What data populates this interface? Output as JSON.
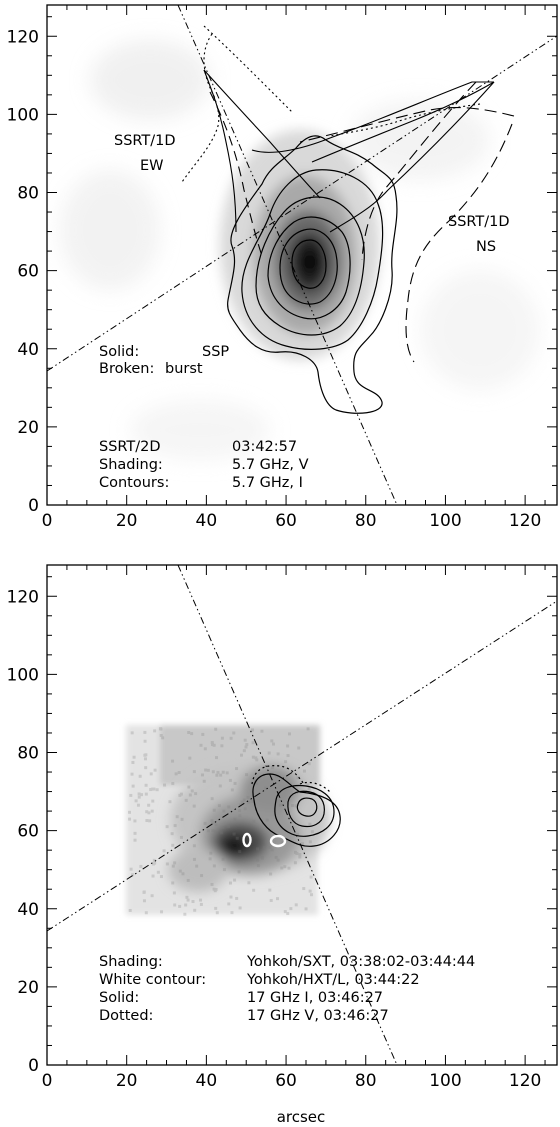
{
  "chart_data": [
    {
      "type": "contour",
      "panel": "top",
      "xlim": [
        0,
        128
      ],
      "ylim": [
        0,
        128
      ],
      "x_ticks": [
        0,
        20,
        40,
        60,
        80,
        100,
        120
      ],
      "y_ticks": [
        0,
        20,
        40,
        60,
        80,
        100,
        120
      ],
      "labels": [
        {
          "text": "SSRT/1D",
          "x": 24,
          "y": 96
        },
        {
          "text": "EW",
          "x": 27,
          "y": 88.5
        },
        {
          "text": "SSRT/1D",
          "x": 112,
          "y": 71.5
        },
        {
          "text": "NS",
          "x": 113,
          "y": 64.5
        }
      ],
      "legend_lines": [
        {
          "key": "Solid:",
          "value": "SSP"
        },
        {
          "key": "Broken:",
          "value": "burst"
        }
      ],
      "info_lines": [
        {
          "key": "SSRT/2D",
          "value": "03:42:57"
        },
        {
          "key": "Shading:",
          "value": "5.7 GHz, V"
        },
        {
          "key": "Contours:",
          "value": "5.7 GHz, I"
        }
      ],
      "scan_lines": [
        {
          "x1": 0,
          "y1": 34,
          "x2": 128,
          "y2": 118
        },
        {
          "x1": 38,
          "y1": 128,
          "x2": 88,
          "y2": 0
        }
      ],
      "shading_peak": {
        "x": 65,
        "y": 62
      },
      "contour_levels": 6
    },
    {
      "type": "contour",
      "panel": "bottom",
      "xlim": [
        0,
        128
      ],
      "ylim": [
        0,
        128
      ],
      "x_ticks": [
        0,
        20,
        40,
        60,
        80,
        100,
        120
      ],
      "y_ticks": [
        0,
        20,
        40,
        60,
        80,
        100,
        120
      ],
      "xlabel": "arcsec",
      "info_lines": [
        {
          "key": "Shading:",
          "value": "Yohkoh/SXT, 03:38:02-03:44:44"
        },
        {
          "key": "White contour:",
          "value": "Yohkoh/HXT/L, 03:44:22"
        },
        {
          "key": "Solid:",
          "value": "17 GHz I, 03:46:27"
        },
        {
          "key": "Dotted:",
          "value": "17 GHz V, 03:46:27"
        }
      ],
      "scan_lines": [
        {
          "x1": 0,
          "y1": 34,
          "x2": 128,
          "y2": 118
        },
        {
          "x1": 38,
          "y1": 128,
          "x2": 88,
          "y2": 0
        }
      ],
      "shading_box": {
        "x0": 20,
        "x1": 74,
        "y0": 39,
        "y1": 87
      },
      "shading_peak": {
        "x": 52,
        "y": 57
      }
    }
  ]
}
